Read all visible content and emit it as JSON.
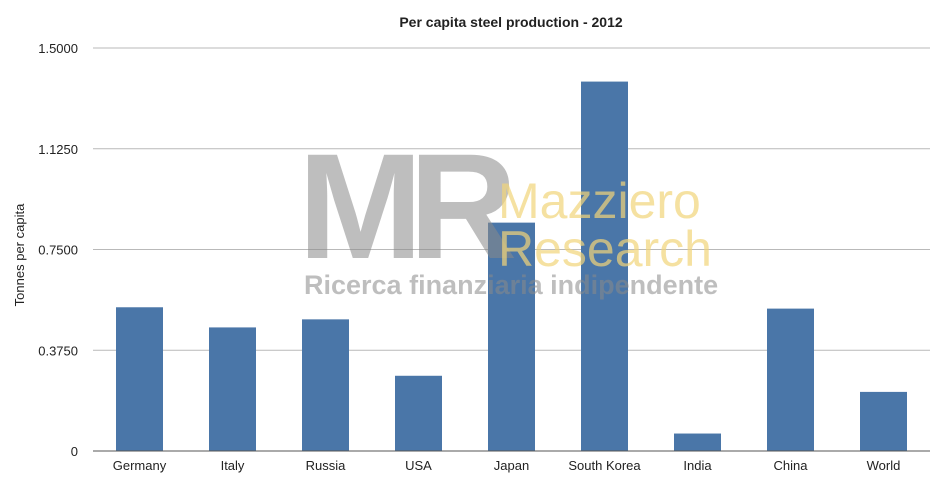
{
  "chart_data": {
    "type": "bar",
    "title": "Per capita steel production - 2012",
    "xlabel": "",
    "ylabel": "Tonnes per capita",
    "ylim": [
      0,
      1.5
    ],
    "yticks": [
      0,
      0.375,
      0.75,
      1.125,
      1.5
    ],
    "ytick_labels": [
      "0",
      "0.3750",
      "0.7500",
      "1.1250",
      "1.5000"
    ],
    "grid": true,
    "legend": "none",
    "categories": [
      "Germany",
      "Italy",
      "Russia",
      "USA",
      "Japan",
      "South Korea",
      "India",
      "China",
      "World"
    ],
    "values": [
      0.535,
      0.46,
      0.49,
      0.28,
      0.85,
      1.375,
      0.065,
      0.53,
      0.22
    ],
    "bar_color": "#4a76a8"
  },
  "watermark": {
    "letters": "MR",
    "brand_line1": "Mazziero",
    "brand_line2": "Research",
    "tagline": "Ricerca finanziaria indipendente"
  }
}
